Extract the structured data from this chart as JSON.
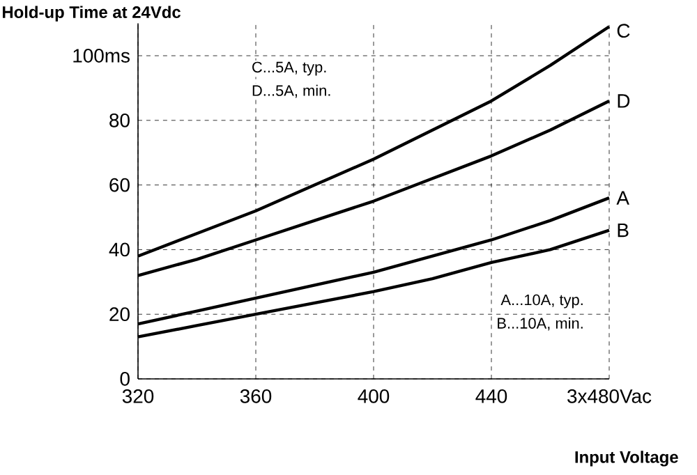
{
  "chart_data": {
    "type": "line",
    "title": "Hold-up Time at 24Vdc",
    "xlabel": "Input Voltage",
    "x": [
      320,
      340,
      360,
      380,
      400,
      420,
      440,
      460,
      480
    ],
    "xlim": [
      320,
      480
    ],
    "ylim": [
      0,
      110
    ],
    "xticks": [
      320,
      360,
      400,
      440,
      {
        "value": 480,
        "label": "3x480Vac"
      }
    ],
    "yticks": [
      0,
      20,
      40,
      60,
      80,
      {
        "value": 100,
        "label": "100ms"
      }
    ],
    "grid": true,
    "line_style": "solid",
    "marker": "none",
    "series": [
      {
        "name": "C",
        "color": "#000000",
        "values": [
          38,
          45,
          52,
          60,
          68,
          77,
          86,
          97,
          109
        ]
      },
      {
        "name": "D",
        "color": "#000000",
        "values": [
          32,
          37,
          43,
          49,
          55,
          62,
          69,
          77,
          86
        ]
      },
      {
        "name": "A",
        "color": "#000000",
        "values": [
          17,
          21,
          25,
          29,
          33,
          38,
          43,
          49,
          56
        ]
      },
      {
        "name": "B",
        "color": "#000000",
        "values": [
          13,
          16.5,
          20,
          23.5,
          27,
          31,
          36,
          40,
          46
        ]
      }
    ],
    "annotations": [
      "C...5A, typ.",
      "D...5A,  min.",
      "A...10A, typ.",
      "B...10A,  min."
    ]
  }
}
